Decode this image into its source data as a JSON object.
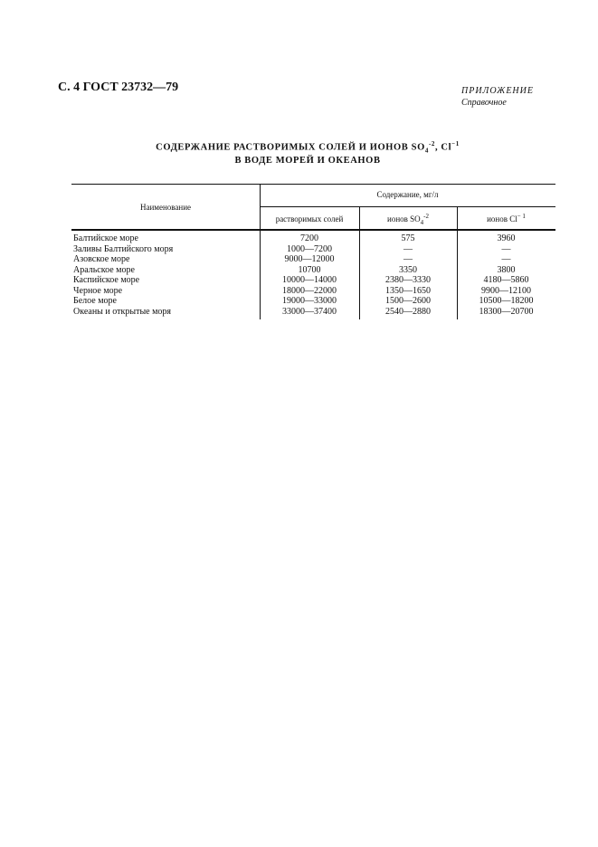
{
  "header": "С. 4 ГОСТ 23732—79",
  "appendix": {
    "label": "ПРИЛОЖЕНИЕ",
    "note": "Справочное"
  },
  "title": {
    "line1": "СОДЕРЖАНИЕ РАСТВОРИМЫХ СОЛЕЙ И ИОНОВ",
    "ion1": "SO",
    "ion1_sub": "4",
    "ion1_sup": "-2",
    "sep": ", Cl",
    "ion2_sup": "−1",
    "line2": "В ВОДЕ МОРЕЙ И ОКЕАНОВ"
  },
  "table": {
    "col_name": "Наименование",
    "group": "Содержание, мг/л",
    "col1": "растворимых солей",
    "col2": "ионов SO",
    "col2_sub": "4",
    "col2_sup": "-2",
    "col3": "ионов Cl",
    "col3_sup": "− 1",
    "rows": [
      [
        "Балтийское море",
        "7200",
        "575",
        "3960"
      ],
      [
        "Заливы Балтийского моря",
        "1000—7200",
        "—",
        "—"
      ],
      [
        "Азовское море",
        "9000—12000",
        "—",
        "—"
      ],
      [
        "Аральское море",
        "10700",
        "3350",
        "3800"
      ],
      [
        "Каспийское море",
        "10000—14000",
        "2380—3330",
        "4180—5860"
      ],
      [
        "Черное море",
        "18000—22000",
        "1350—1650",
        "9900—12100"
      ],
      [
        "Белое море",
        "19000—33000",
        "1500—2600",
        "10500—18200"
      ],
      [
        "Океаны и открытые моря",
        "33000—37400",
        "2540—2880",
        "18300—20700"
      ]
    ]
  }
}
